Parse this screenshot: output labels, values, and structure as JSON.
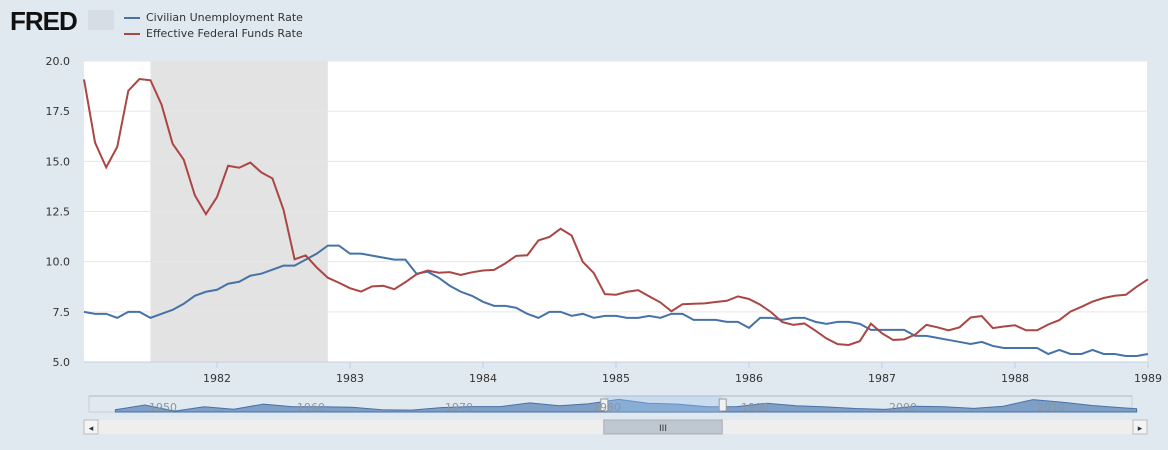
{
  "logo": "FRED",
  "chart_data": {
    "type": "line",
    "x_start": "1981-01",
    "frequency": "monthly",
    "x_ticks": [
      "1982",
      "1983",
      "1984",
      "1985",
      "1986",
      "1987",
      "1988",
      "1989"
    ],
    "y_ticks": [
      "5.0",
      "7.5",
      "10.0",
      "12.5",
      "15.0",
      "17.5",
      "20.0"
    ],
    "ylim": [
      5,
      20
    ],
    "recession": [
      "1981-07",
      "1982-11"
    ],
    "recession_color": "#e3e3e3",
    "legend": "top-left",
    "series": [
      {
        "name": "Civilian Unemployment Rate",
        "color": "#4572a7",
        "values": [
          7.5,
          7.4,
          7.4,
          7.2,
          7.5,
          7.5,
          7.2,
          7.4,
          7.6,
          7.9,
          8.3,
          8.5,
          8.6,
          8.9,
          9.0,
          9.3,
          9.4,
          9.6,
          9.8,
          9.8,
          10.1,
          10.4,
          10.8,
          10.8,
          10.4,
          10.4,
          10.3,
          10.2,
          10.1,
          10.1,
          9.4,
          9.5,
          9.2,
          8.8,
          8.5,
          8.3,
          8.0,
          7.8,
          7.8,
          7.7,
          7.4,
          7.2,
          7.5,
          7.5,
          7.3,
          7.4,
          7.2,
          7.3,
          7.3,
          7.2,
          7.2,
          7.3,
          7.2,
          7.4,
          7.4,
          7.1,
          7.1,
          7.1,
          7.0,
          7.0,
          6.7,
          7.2,
          7.2,
          7.1,
          7.2,
          7.2,
          7.0,
          6.9,
          7.0,
          7.0,
          6.9,
          6.6,
          6.6,
          6.6,
          6.6,
          6.3,
          6.3,
          6.2,
          6.1,
          6.0,
          5.9,
          6.0,
          5.8,
          5.7,
          5.7,
          5.7,
          5.7,
          5.4,
          5.6,
          5.4,
          5.4,
          5.6,
          5.4,
          5.4,
          5.3,
          5.3,
          5.4
        ]
      },
      {
        "name": "Effective Federal Funds Rate",
        "color": "#aa4643",
        "values": [
          19.08,
          15.93,
          14.7,
          15.72,
          18.52,
          19.1,
          19.04,
          17.82,
          15.87,
          15.08,
          13.31,
          12.37,
          13.22,
          14.78,
          14.68,
          14.94,
          14.45,
          14.15,
          12.59,
          10.12,
          10.31,
          9.71,
          9.2,
          8.95,
          8.68,
          8.51,
          8.77,
          8.8,
          8.63,
          8.98,
          9.37,
          9.56,
          9.45,
          9.48,
          9.34,
          9.47,
          9.56,
          9.59,
          9.91,
          10.29,
          10.32,
          11.06,
          11.23,
          11.64,
          11.3,
          9.99,
          9.43,
          8.38,
          8.35,
          8.5,
          8.58,
          8.27,
          7.97,
          7.53,
          7.88,
          7.9,
          7.92,
          7.99,
          8.05,
          8.27,
          8.14,
          7.86,
          7.48,
          6.99,
          6.85,
          6.92,
          6.56,
          6.17,
          5.89,
          5.85,
          6.04,
          6.91,
          6.43,
          6.1,
          6.13,
          6.37,
          6.85,
          6.73,
          6.58,
          6.73,
          7.22,
          7.29,
          6.69,
          6.77,
          6.83,
          6.58,
          6.58,
          6.87,
          7.09,
          7.51,
          7.75,
          8.01,
          8.19,
          8.3,
          8.35,
          8.76,
          9.12
        ]
      }
    ],
    "navigator": {
      "x_ticks": [
        "1950",
        "1960",
        "1970",
        "1980",
        "1990",
        "2000",
        "2010"
      ],
      "selected": [
        "1981",
        "1989"
      ],
      "years": [
        1948,
        1950,
        1952,
        1954,
        1956,
        1958,
        1960,
        1962,
        1964,
        1966,
        1968,
        1970,
        1972,
        1974,
        1976,
        1978,
        1980,
        1982,
        1984,
        1986,
        1988,
        1990,
        1992,
        1994,
        1996,
        1998,
        2000,
        2002,
        2004,
        2006,
        2008,
        2010,
        2012,
        2014,
        2016,
        2017
      ],
      "values": [
        3.8,
        6.5,
        3.0,
        5.5,
        4.1,
        7.0,
        5.5,
        5.5,
        5.2,
        3.8,
        3.6,
        5.0,
        5.6,
        5.6,
        7.7,
        6.1,
        7.2,
        9.7,
        7.5,
        7.0,
        5.5,
        5.6,
        7.5,
        6.1,
        5.4,
        4.5,
        4.0,
        5.8,
        5.5,
        4.6,
        5.8,
        9.6,
        8.1,
        6.2,
        4.9,
        4.4
      ]
    }
  }
}
